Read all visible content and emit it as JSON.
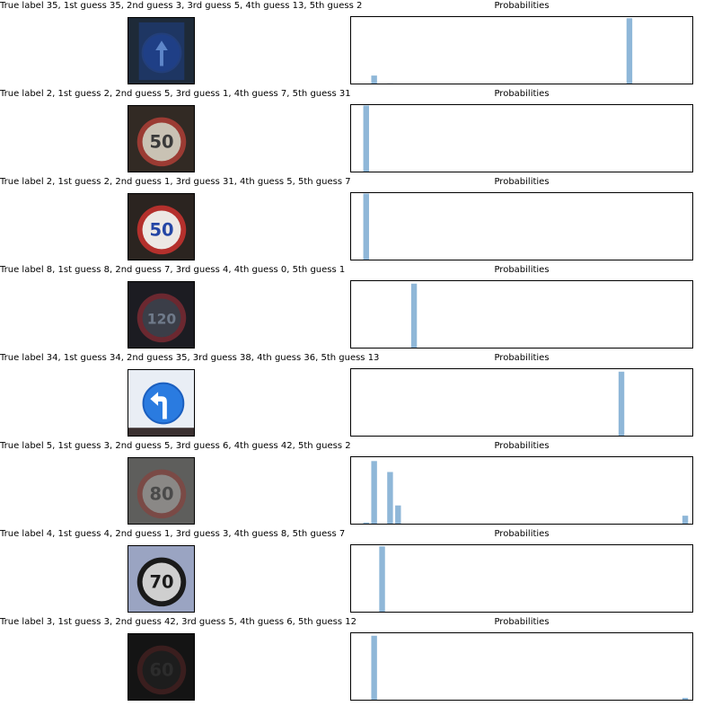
{
  "bar_color": "#8fb7d8",
  "chart_data": [
    {
      "type": "bar",
      "caption": "True label 35, 1st guess 35, 2nd guess 3, 3rd guess 5, 4th guess 13, 5th guess 2",
      "title": "Probabilities",
      "image": {
        "sign": "ahead-only",
        "bg": "#1e2a38",
        "face": "#1f3f86",
        "ring": "#233f7a",
        "glyph": "#5e86c9"
      },
      "xlim": [
        0,
        43
      ],
      "ylim": [
        0,
        1
      ],
      "values": [
        {
          "x": 3,
          "y": 0.13
        },
        {
          "x": 5,
          "y": 0.015
        },
        {
          "x": 13,
          "y": 0.01
        },
        {
          "x": 35,
          "y": 0.97
        }
      ]
    },
    {
      "type": "bar",
      "caption": "True label 2, 1st guess 2, 2nd guess 5, 3rd guess 1, 4th guess 7, 5th guess 31",
      "title": "Probabilities",
      "image": {
        "sign": "50",
        "bg": "#322a24",
        "face": "#c9c2b4",
        "ring": "#9b3b33",
        "glyph": "#3a3a3a"
      },
      "xlim": [
        0,
        43
      ],
      "ylim": [
        0,
        1
      ],
      "values": [
        {
          "x": 2,
          "y": 0.98
        }
      ]
    },
    {
      "type": "bar",
      "caption": "True label 2, 1st guess 2, 2nd guess 1, 3rd guess 31, 4th guess 5, 5th guess 7",
      "title": "Probabilities",
      "image": {
        "sign": "50",
        "bg": "#2b2420",
        "face": "#ece8e4",
        "ring": "#b4302c",
        "glyph": "#2446a5"
      },
      "xlim": [
        0,
        43
      ],
      "ylim": [
        0,
        1
      ],
      "values": [
        {
          "x": 2,
          "y": 0.98
        }
      ]
    },
    {
      "type": "bar",
      "caption": "True label 8, 1st guess 8, 2nd guess 7, 3rd guess 4, 4th guess 0, 5th guess 1",
      "title": "Probabilities",
      "image": {
        "sign": "120",
        "bg": "#1c1c22",
        "face": "#3b3e48",
        "ring": "#6b2830",
        "glyph": "#6f7a8a"
      },
      "xlim": [
        0,
        43
      ],
      "ylim": [
        0,
        1
      ],
      "values": [
        {
          "x": 8,
          "y": 0.95
        }
      ]
    },
    {
      "type": "bar",
      "caption": "True label 34, 1st guess 34, 2nd guess 35, 3rd guess 38, 4th guess 36, 5th guess 13",
      "title": "Probabilities",
      "image": {
        "sign": "turn-left-ahead",
        "bg": "#cfdcec",
        "face": "#2a7be0",
        "ring": "#1b5fbf",
        "glyph": "#ffffff"
      },
      "xlim": [
        0,
        43
      ],
      "ylim": [
        0,
        1
      ],
      "values": [
        {
          "x": 34,
          "y": 0.95
        }
      ]
    },
    {
      "type": "bar",
      "caption": "True label 5, 1st guess 3, 2nd guess 5, 3rd guess 6, 4th guess 42, 5th guess 2",
      "title": "Probabilities",
      "image": {
        "sign": "80",
        "bg": "#5e5e5c",
        "face": "#8a8886",
        "ring": "#7a4a46",
        "glyph": "#4a4a4a"
      },
      "xlim": [
        0,
        43
      ],
      "ylim": [
        0,
        1
      ],
      "values": [
        {
          "x": 1,
          "y": 0.01
        },
        {
          "x": 2,
          "y": 0.03
        },
        {
          "x": 3,
          "y": 0.93
        },
        {
          "x": 5,
          "y": 0.77
        },
        {
          "x": 6,
          "y": 0.28
        },
        {
          "x": 42,
          "y": 0.13
        }
      ]
    },
    {
      "type": "bar",
      "caption": "True label 4, 1st guess 4, 2nd guess 1, 3rd guess 3, 4th guess 8, 5th guess 7",
      "title": "Probabilities",
      "image": {
        "sign": "70",
        "bg": "#9aa4c2",
        "face": "#cfcfcf",
        "ring": "#1a1a1a",
        "glyph": "#1a1a1a"
      },
      "xlim": [
        0,
        43
      ],
      "ylim": [
        0,
        1
      ],
      "values": [
        {
          "x": 4,
          "y": 0.97
        }
      ]
    },
    {
      "type": "bar",
      "caption": "True label 3, 1st guess 3, 2nd guess 42, 3rd guess 5, 4th guess 6, 5th guess 12",
      "title": "Probabilities",
      "image": {
        "sign": "60",
        "bg": "#141414",
        "face": "#1d1d1d",
        "ring": "#3a1e1e",
        "glyph": "#2c2c2c"
      },
      "xlim": [
        0,
        43
      ],
      "ylim": [
        0,
        1
      ],
      "values": [
        {
          "x": 3,
          "y": 0.95
        },
        {
          "x": 5,
          "y": 0.01
        },
        {
          "x": 42,
          "y": 0.04
        }
      ]
    }
  ]
}
